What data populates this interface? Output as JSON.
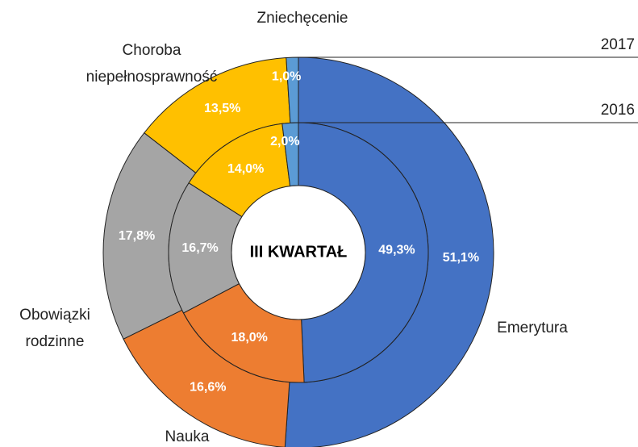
{
  "chart_data": {
    "type": "donut",
    "center_label": "III KWARTAŁ",
    "categories": [
      "Emerytura",
      "Nauka",
      "Obowiązki rodzinne",
      "Choroba niepełnosprawność",
      "Zniechęcenie"
    ],
    "colors": [
      "#4472c4",
      "#ed7d31",
      "#a5a5a5",
      "#ffc000",
      "#5b9bd5"
    ],
    "series": [
      {
        "name": "2017",
        "values": [
          51.1,
          16.6,
          17.8,
          13.5,
          1.0
        ],
        "value_labels": [
          "51,1%",
          "16,6%",
          "17,8%",
          "13,5%",
          "1,0%"
        ]
      },
      {
        "name": "2016",
        "values": [
          49.3,
          18.0,
          16.7,
          14.0,
          2.0
        ],
        "value_labels": [
          "49,3%",
          "18,0%",
          "16,7%",
          "14,0%",
          "2,0%"
        ]
      }
    ]
  }
}
